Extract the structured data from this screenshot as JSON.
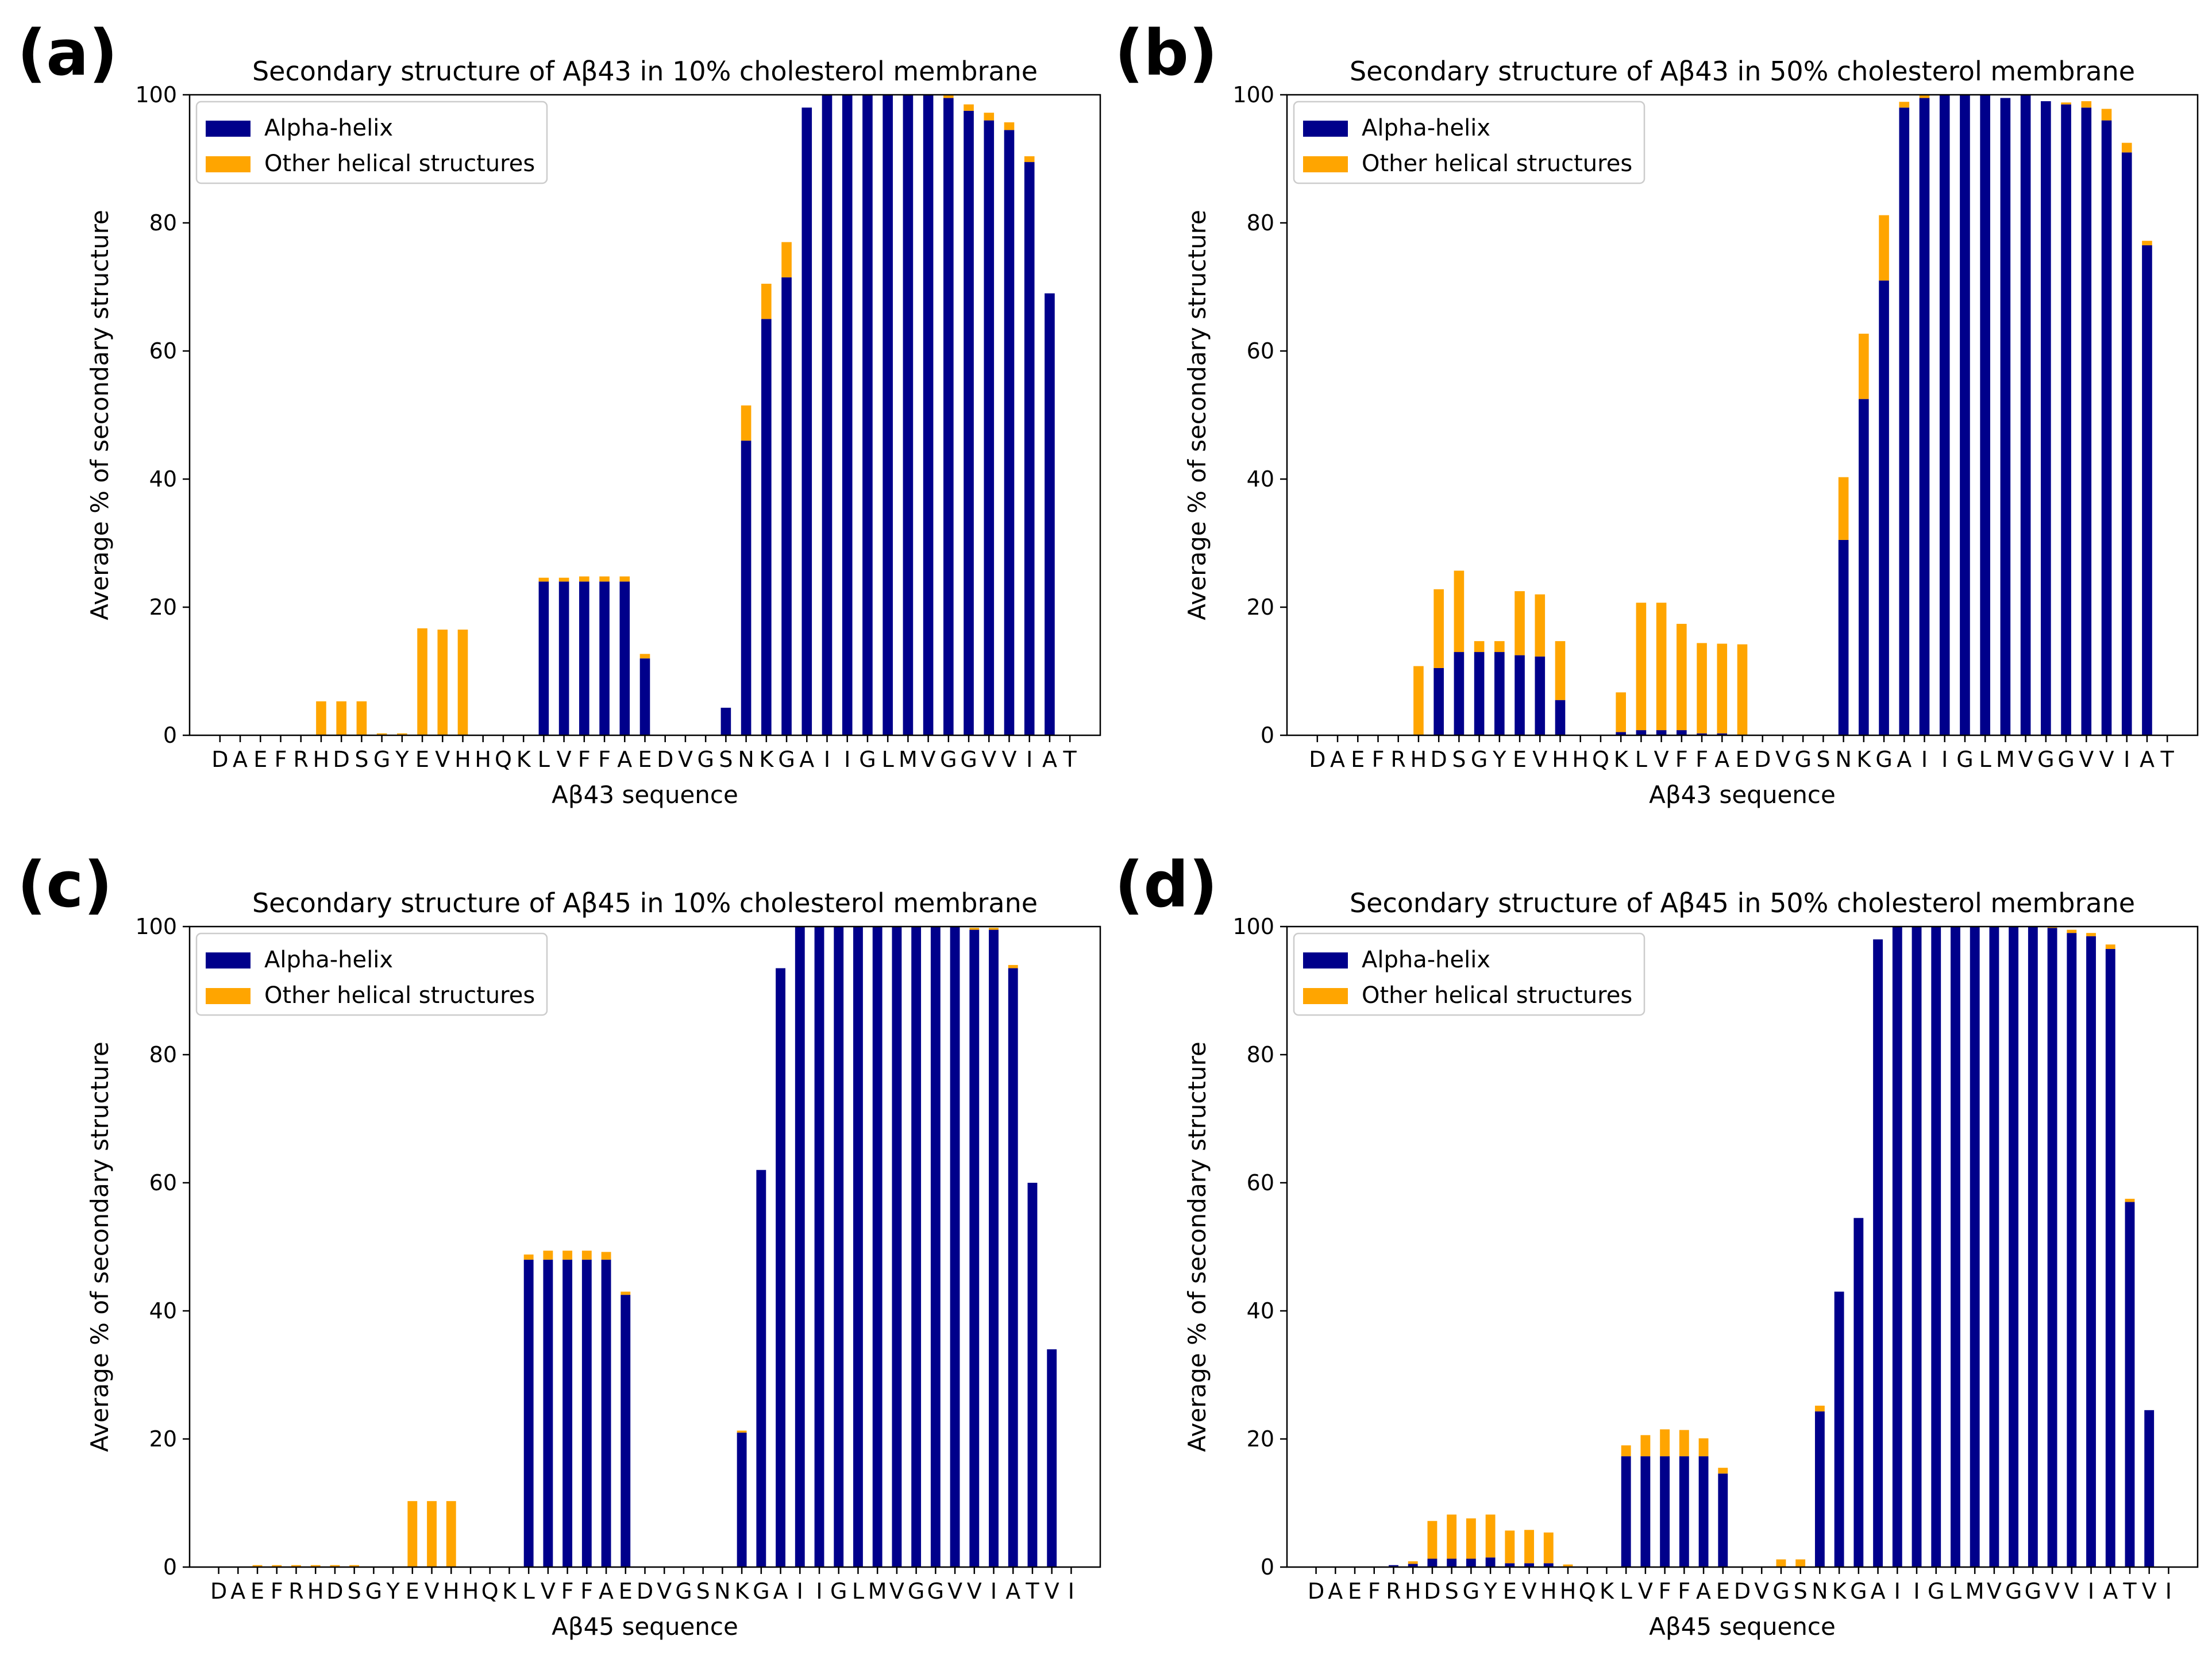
{
  "colors": {
    "alpha": "#00008B",
    "other": "#FFA500",
    "axis": "#000000",
    "legend_border": "#CCCCCC"
  },
  "chart_data": [
    {
      "type": "bar",
      "stacked": true,
      "panel_label": "(a)",
      "title": "Secondary structure of Aβ43 in 10% cholesterol membrane",
      "xlabel": "Aβ43 sequence",
      "ylabel": "Average % of secondary structure",
      "ylim": [
        0,
        100
      ],
      "yticks": [
        0,
        20,
        40,
        60,
        80,
        100
      ],
      "grid": false,
      "legend_position": "top-left",
      "categories": [
        "D",
        "A",
        "E",
        "F",
        "R",
        "H",
        "D",
        "S",
        "G",
        "Y",
        "E",
        "V",
        "H",
        "H",
        "Q",
        "K",
        "L",
        "V",
        "F",
        "F",
        "A",
        "E",
        "D",
        "V",
        "G",
        "S",
        "N",
        "K",
        "G",
        "A",
        "I",
        "I",
        "G",
        "L",
        "M",
        "V",
        "G",
        "G",
        "V",
        "V",
        "I",
        "A",
        "T"
      ],
      "series": [
        {
          "name": "Alpha-helix",
          "values": [
            0,
            0,
            0,
            0,
            0,
            0,
            0,
            0,
            0,
            0,
            0,
            0,
            0,
            0,
            0,
            0,
            24,
            24,
            24,
            24,
            24,
            12,
            0,
            0,
            0,
            4.3,
            46,
            65,
            71.5,
            98,
            100,
            100,
            100,
            100,
            100,
            100,
            99.5,
            97.5,
            96,
            94.5,
            89.5,
            69,
            0
          ]
        },
        {
          "name": "Other helical structures",
          "values": [
            0,
            0,
            0,
            0,
            0,
            5.3,
            5.3,
            5.3,
            0.3,
            0.3,
            16.7,
            16.5,
            16.5,
            0,
            0,
            0,
            0.6,
            0.6,
            0.8,
            0.8,
            0.8,
            0.7,
            0,
            0,
            0,
            0,
            5.5,
            5.5,
            5.5,
            0,
            0,
            0,
            0,
            0,
            0,
            0,
            0.5,
            1,
            1.2,
            1.2,
            0.9,
            0,
            0
          ]
        }
      ]
    },
    {
      "type": "bar",
      "stacked": true,
      "panel_label": "(b)",
      "title": "Secondary structure of Aβ43 in 50% cholesterol membrane",
      "xlabel": "Aβ43 sequence",
      "ylabel": "Average % of secondary structure",
      "ylim": [
        0,
        100
      ],
      "yticks": [
        0,
        20,
        40,
        60,
        80,
        100
      ],
      "grid": false,
      "legend_position": "top-left",
      "categories": [
        "D",
        "A",
        "E",
        "F",
        "R",
        "H",
        "D",
        "S",
        "G",
        "Y",
        "E",
        "V",
        "H",
        "H",
        "Q",
        "K",
        "L",
        "V",
        "F",
        "F",
        "A",
        "E",
        "D",
        "V",
        "G",
        "S",
        "N",
        "K",
        "G",
        "A",
        "I",
        "I",
        "G",
        "L",
        "M",
        "V",
        "G",
        "G",
        "V",
        "V",
        "I",
        "A",
        "T"
      ],
      "series": [
        {
          "name": "Alpha-helix",
          "values": [
            0,
            0,
            0,
            0,
            0,
            0,
            10.5,
            13,
            13,
            13,
            12.5,
            12.3,
            5.5,
            0,
            0,
            0.5,
            0.8,
            0.8,
            0.8,
            0.3,
            0.3,
            0,
            0,
            0,
            0,
            0,
            30.5,
            52.5,
            71,
            98,
            99.5,
            100,
            100,
            100,
            99.5,
            100,
            99,
            98.5,
            98,
            96,
            91,
            76.5,
            0
          ]
        },
        {
          "name": "Other helical structures",
          "values": [
            0,
            0,
            0,
            0,
            0,
            10.8,
            12.3,
            12.7,
            1.7,
            1.7,
            10,
            9.7,
            9.2,
            0,
            0,
            6.2,
            19.9,
            19.9,
            16.6,
            14.1,
            14,
            14.2,
            0,
            0,
            0,
            0,
            9.8,
            10.2,
            10.2,
            0.9,
            0.5,
            0,
            0,
            0,
            0,
            0,
            0,
            0.3,
            1,
            1.8,
            1.5,
            0.7,
            0
          ]
        }
      ]
    },
    {
      "type": "bar",
      "stacked": true,
      "panel_label": "(c)",
      "title": "Secondary structure of Aβ45 in 10% cholesterol membrane",
      "xlabel": "Aβ45 sequence",
      "ylabel": "Average % of secondary structure",
      "ylim": [
        0,
        100
      ],
      "yticks": [
        0,
        20,
        40,
        60,
        80,
        100
      ],
      "grid": false,
      "legend_position": "top-left",
      "categories": [
        "D",
        "A",
        "E",
        "F",
        "R",
        "H",
        "D",
        "S",
        "G",
        "Y",
        "E",
        "V",
        "H",
        "H",
        "Q",
        "K",
        "L",
        "V",
        "F",
        "F",
        "A",
        "E",
        "D",
        "V",
        "G",
        "S",
        "N",
        "K",
        "G",
        "A",
        "I",
        "I",
        "G",
        "L",
        "M",
        "V",
        "G",
        "G",
        "V",
        "V",
        "I",
        "A",
        "T",
        "V",
        "I"
      ],
      "series": [
        {
          "name": "Alpha-helix",
          "values": [
            0,
            0,
            0,
            0,
            0,
            0,
            0,
            0,
            0,
            0,
            0,
            0,
            0,
            0,
            0,
            0,
            48,
            48,
            48,
            48,
            48,
            42.5,
            0,
            0,
            0,
            0,
            0,
            21,
            62,
            93.5,
            100,
            100,
            100,
            100,
            100,
            100,
            100,
            100,
            100,
            99.5,
            99.5,
            93.5,
            60,
            34,
            0
          ]
        },
        {
          "name": "Other helical structures",
          "values": [
            0,
            0,
            0.3,
            0.3,
            0.3,
            0.3,
            0.3,
            0.3,
            0,
            0,
            10.3,
            10.3,
            10.3,
            0,
            0,
            0,
            0.8,
            1.4,
            1.4,
            1.4,
            1.2,
            0.5,
            0,
            0,
            0,
            0,
            0,
            0.3,
            0,
            0,
            0,
            0,
            0,
            0,
            0,
            0,
            0,
            0,
            0,
            0.3,
            0.3,
            0.5,
            0,
            0,
            0
          ]
        }
      ]
    },
    {
      "type": "bar",
      "stacked": true,
      "panel_label": "(d)",
      "title": "Secondary structure of Aβ45 in 50% cholesterol membrane",
      "xlabel": "Aβ45 sequence",
      "ylabel": "Average % of secondary structure",
      "ylim": [
        0,
        100
      ],
      "yticks": [
        0,
        20,
        40,
        60,
        80,
        100
      ],
      "grid": false,
      "legend_position": "top-left",
      "categories": [
        "D",
        "A",
        "E",
        "F",
        "R",
        "H",
        "D",
        "S",
        "G",
        "Y",
        "E",
        "V",
        "H",
        "H",
        "Q",
        "K",
        "L",
        "V",
        "F",
        "F",
        "A",
        "E",
        "D",
        "V",
        "G",
        "S",
        "N",
        "K",
        "G",
        "A",
        "I",
        "I",
        "G",
        "L",
        "M",
        "V",
        "G",
        "G",
        "V",
        "V",
        "I",
        "A",
        "T",
        "V",
        "I"
      ],
      "series": [
        {
          "name": "Alpha-helix",
          "values": [
            0,
            0,
            0,
            0,
            0.3,
            0.5,
            1.3,
            1.3,
            1.3,
            1.5,
            0.6,
            0.6,
            0.6,
            0,
            0,
            0,
            17.3,
            17.3,
            17.3,
            17.3,
            17.3,
            14.6,
            0,
            0,
            0,
            0,
            24.3,
            43,
            54.5,
            98,
            100,
            100,
            100,
            100,
            100,
            100,
            100,
            100,
            99.8,
            99,
            98.5,
            96.5,
            57,
            24.5,
            0
          ]
        },
        {
          "name": "Other helical structures",
          "values": [
            0,
            0,
            0,
            0,
            0,
            0.4,
            5.9,
            6.9,
            6.3,
            6.7,
            5.1,
            5.2,
            4.8,
            0.4,
            0,
            0,
            1.7,
            3.3,
            4.2,
            4.1,
            2.8,
            0.9,
            0,
            0,
            1.2,
            1.2,
            0.9,
            0,
            0,
            0,
            0,
            0,
            0,
            0,
            0,
            0,
            0,
            0,
            0.2,
            0.5,
            0.5,
            0.7,
            0.5,
            0,
            0
          ]
        }
      ]
    }
  ]
}
